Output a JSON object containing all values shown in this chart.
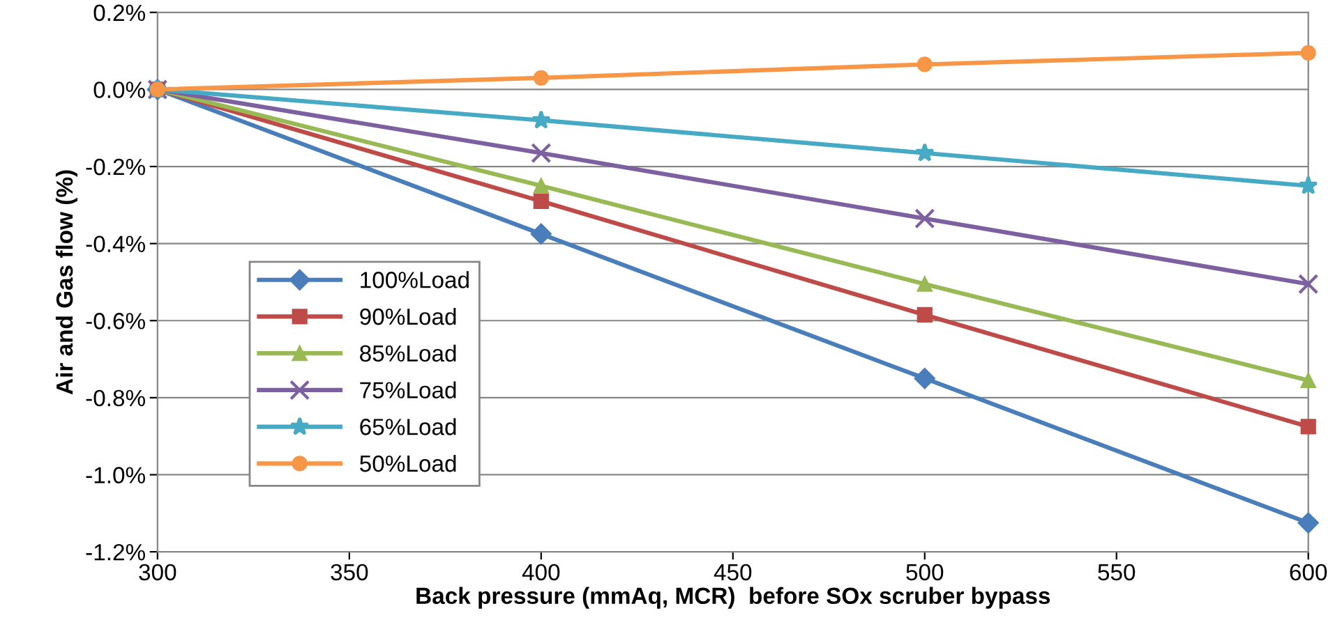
{
  "chart_data": {
    "type": "line",
    "xlabel": "Back pressure (mmAq, MCR)  before SOx scruber bypass",
    "ylabel": "Air and Gas flow (%)",
    "x": [
      300,
      400,
      500,
      600
    ],
    "series": [
      {
        "name": "100%Load",
        "color": "#4a7ebb",
        "marker": "diamond",
        "values": [
          0,
          -0.375,
          -0.75,
          -1.125
        ]
      },
      {
        "name": "90%Load",
        "color": "#be4b48",
        "marker": "square",
        "values": [
          0,
          -0.29,
          -0.585,
          -0.875
        ]
      },
      {
        "name": "85%Load",
        "color": "#98b954",
        "marker": "triangle",
        "values": [
          0,
          -0.25,
          -0.505,
          -0.755
        ]
      },
      {
        "name": "75%Load",
        "color": "#7d60a0",
        "marker": "cross",
        "values": [
          0,
          -0.165,
          -0.335,
          -0.505
        ]
      },
      {
        "name": "65%Load",
        "color": "#46aac5",
        "marker": "star",
        "values": [
          0,
          -0.08,
          -0.165,
          -0.25
        ]
      },
      {
        "name": "50%Load",
        "color": "#f79646",
        "marker": "circle",
        "values": [
          0,
          0.03,
          0.065,
          0.095
        ]
      }
    ],
    "xlim": [
      300,
      600
    ],
    "xticks": [
      300,
      350,
      400,
      450,
      500,
      550,
      600
    ],
    "ylim": [
      -1.2,
      0.2
    ],
    "yticks": [
      {
        "value": -1.2,
        "label": "-1.2%"
      },
      {
        "value": -1.0,
        "label": "-1.0%"
      },
      {
        "value": -0.8,
        "label": "-0.8%"
      },
      {
        "value": -0.6,
        "label": "-0.6%"
      },
      {
        "value": -0.4,
        "label": "-0.4%"
      },
      {
        "value": -0.2,
        "label": "-0.2%"
      },
      {
        "value": 0.0,
        "label": "0.0%"
      },
      {
        "value": 0.2,
        "label": "0.2%"
      }
    ],
    "grid": "y",
    "legend": "left",
    "line_style": "solid"
  }
}
